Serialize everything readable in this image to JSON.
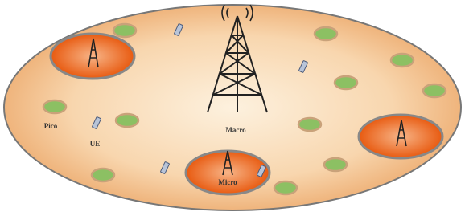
{
  "labels": {
    "pico": "Pico",
    "ue": "UE",
    "macro": "Macro",
    "micro": "Micro"
  }
}
